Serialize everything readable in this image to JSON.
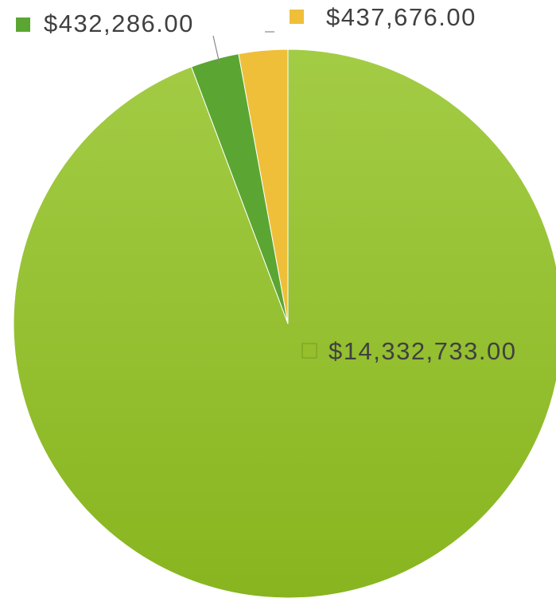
{
  "chart_data": {
    "type": "pie",
    "values": [
      14332733,
      432286,
      437676
    ],
    "value_labels": [
      "$14,332,733.00",
      "$432,286.00",
      "$437,676.00"
    ],
    "colors": [
      "#96bf2e",
      "#5ba632",
      "#efbf3a"
    ]
  }
}
